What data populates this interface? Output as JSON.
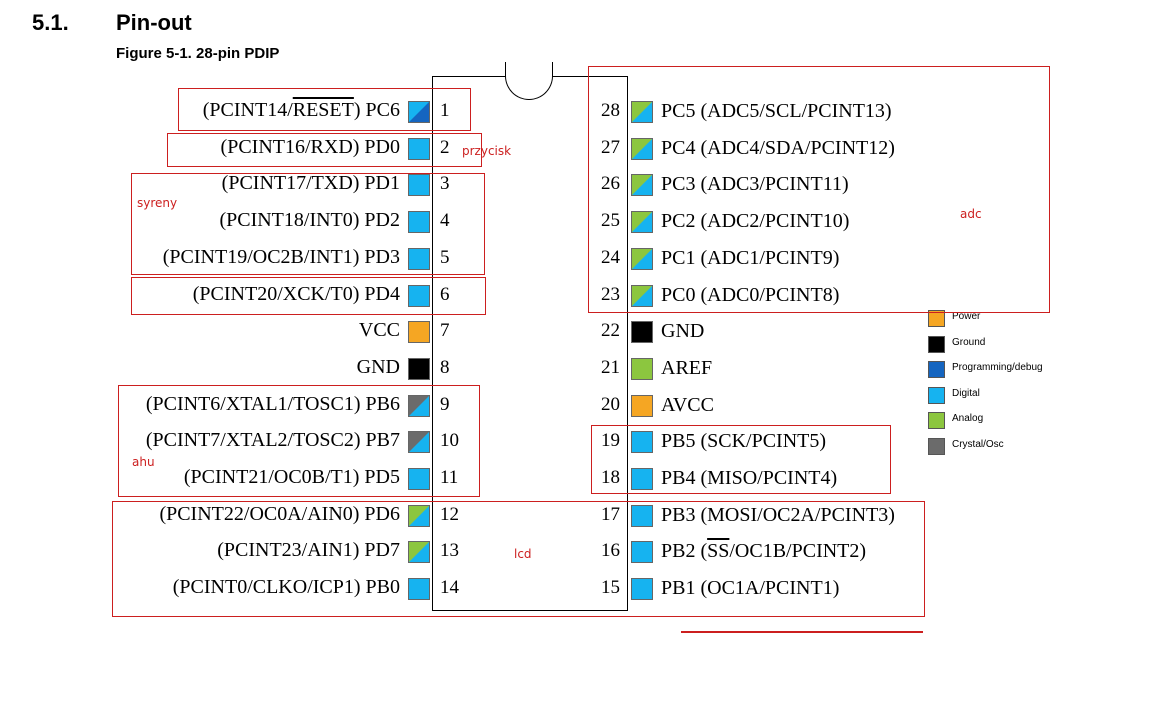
{
  "header": {
    "section_number": "5.1.",
    "section_title": "Pin-out",
    "figure_caption": "Figure 5-1.  28-pin PDIP"
  },
  "colors": {
    "power": "#f5a623",
    "ground": "#000000",
    "programming_debug": "#1565c0",
    "digital": "#16b3f0",
    "analog": "#8cc63f",
    "crystal_osc": "#6b6b6b",
    "annotation": "#cc1f1f"
  },
  "left_pins": [
    {
      "num": "1",
      "pre": "(PCINT14/",
      "ov": "RESET",
      "post": ") PC6",
      "type": "programming-digital"
    },
    {
      "num": "2",
      "pre": "(PCINT16/RXD) PD0",
      "ov": "",
      "post": "",
      "type": "digital"
    },
    {
      "num": "3",
      "pre": "(PCINT17/TXD) PD1",
      "ov": "",
      "post": "",
      "type": "digital"
    },
    {
      "num": "4",
      "pre": "(PCINT18/INT0) PD2",
      "ov": "",
      "post": "",
      "type": "digital"
    },
    {
      "num": "5",
      "pre": "(PCINT19/OC2B/INT1) PD3",
      "ov": "",
      "post": "",
      "type": "digital"
    },
    {
      "num": "6",
      "pre": "(PCINT20/XCK/T0) PD4",
      "ov": "",
      "post": "",
      "type": "digital"
    },
    {
      "num": "7",
      "pre": "VCC",
      "ov": "",
      "post": "",
      "type": "power"
    },
    {
      "num": "8",
      "pre": "GND",
      "ov": "",
      "post": "",
      "type": "ground"
    },
    {
      "num": "9",
      "pre": "(PCINT6/XTAL1/TOSC1) PB6",
      "ov": "",
      "post": "",
      "type": "crystal-digital"
    },
    {
      "num": "10",
      "pre": "(PCINT7/XTAL2/TOSC2) PB7",
      "ov": "",
      "post": "",
      "type": "crystal-digital"
    },
    {
      "num": "11",
      "pre": "(PCINT21/OC0B/T1) PD5",
      "ov": "",
      "post": "",
      "type": "digital"
    },
    {
      "num": "12",
      "pre": "(PCINT22/OC0A/AIN0) PD6",
      "ov": "",
      "post": "",
      "type": "analog-digital"
    },
    {
      "num": "13",
      "pre": "(PCINT23/AIN1) PD7",
      "ov": "",
      "post": "",
      "type": "analog-digital"
    },
    {
      "num": "14",
      "pre": "(PCINT0/CLKO/ICP1) PB0",
      "ov": "",
      "post": "",
      "type": "digital"
    }
  ],
  "right_pins": [
    {
      "num": "28",
      "pre": "PC5 (ADC5/SCL/PCINT13)",
      "ov": "",
      "post": "",
      "type": "analog-digital"
    },
    {
      "num": "27",
      "pre": "PC4 (ADC4/SDA/PCINT12)",
      "ov": "",
      "post": "",
      "type": "analog-digital"
    },
    {
      "num": "26",
      "pre": "PC3 (ADC3/PCINT11)",
      "ov": "",
      "post": "",
      "type": "analog-digital"
    },
    {
      "num": "25",
      "pre": "PC2 (ADC2/PCINT10)",
      "ov": "",
      "post": "",
      "type": "analog-digital"
    },
    {
      "num": "24",
      "pre": "PC1 (ADC1/PCINT9)",
      "ov": "",
      "post": "",
      "type": "analog-digital"
    },
    {
      "num": "23",
      "pre": "PC0 (ADC0/PCINT8)",
      "ov": "",
      "post": "",
      "type": "analog-digital"
    },
    {
      "num": "22",
      "pre": "GND",
      "ov": "",
      "post": "",
      "type": "ground"
    },
    {
      "num": "21",
      "pre": "AREF",
      "ov": "",
      "post": "",
      "type": "analog"
    },
    {
      "num": "20",
      "pre": "AVCC",
      "ov": "",
      "post": "",
      "type": "power"
    },
    {
      "num": "19",
      "pre": "PB5 (SCK/PCINT5)",
      "ov": "",
      "post": "",
      "type": "digital"
    },
    {
      "num": "18",
      "pre": "PB4 (MISO/PCINT4)",
      "ov": "",
      "post": "",
      "type": "digital"
    },
    {
      "num": "17",
      "pre": "PB3 (MOSI/OC2A/PCINT3)",
      "ov": "",
      "post": "",
      "type": "digital"
    },
    {
      "num": "16",
      "pre": "PB2 (",
      "ov": "SS",
      "post": "/OC1B/PCINT2)",
      "type": "digital"
    },
    {
      "num": "15",
      "pre": "PB1 (OC1A/PCINT1)",
      "ov": "",
      "post": "",
      "type": "digital"
    }
  ],
  "legend": [
    {
      "label": "Power",
      "color": "#f5a623"
    },
    {
      "label": "Ground",
      "color": "#000000"
    },
    {
      "label": "Programming/debug",
      "color": "#1565c0"
    },
    {
      "label": "Digital",
      "color": "#16b3f0"
    },
    {
      "label": "Analog",
      "color": "#8cc63f"
    },
    {
      "label": "Crystal/Osc",
      "color": "#6b6b6b"
    }
  ],
  "annotations": {
    "przycisk": "przycisk",
    "syreny": "syreny",
    "adc": "adc",
    "ahu": "ahu",
    "lcd": "lcd"
  }
}
